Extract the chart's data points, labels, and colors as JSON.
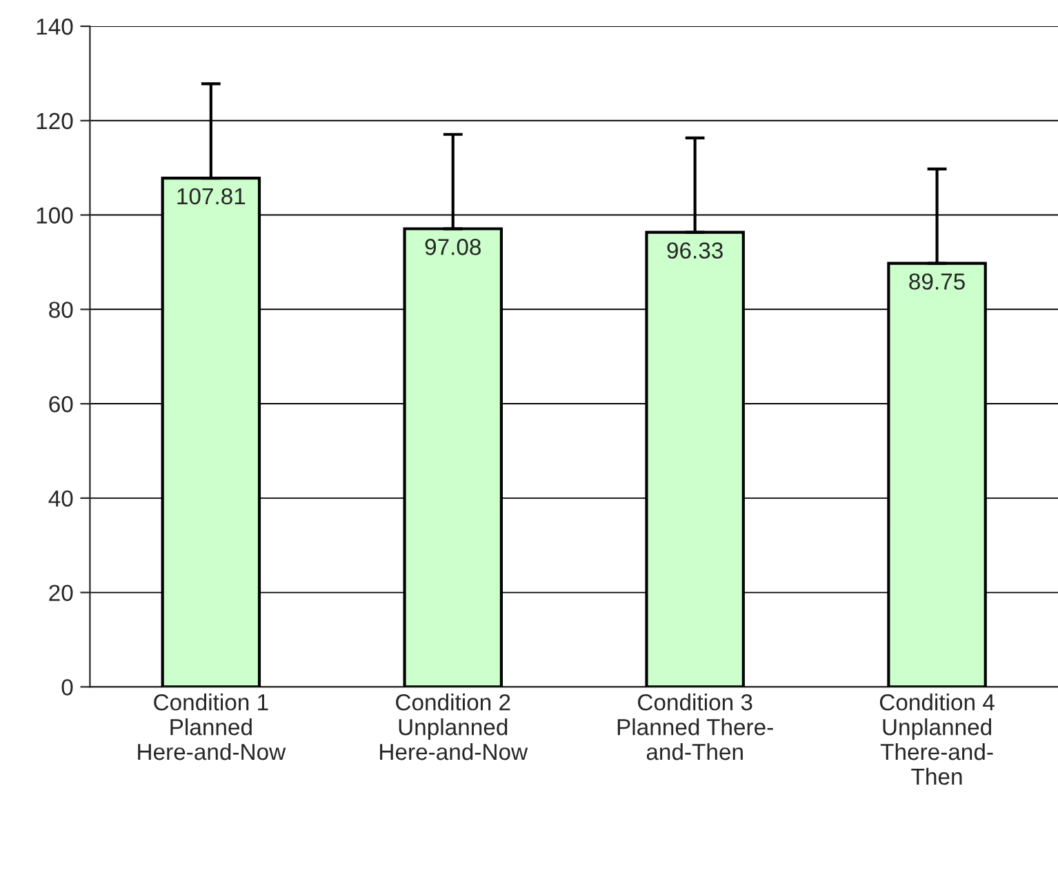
{
  "chart_data": {
    "type": "bar",
    "categories": [
      "Condition 1\nPlanned\nHere-and-Now",
      "Condition 2\nUnplanned\nHere-and-Now",
      "Condition 3\nPlanned There-\nand-Then",
      "Condition 4\nUnplanned\nThere-and-\nThen"
    ],
    "values": [
      107.81,
      97.08,
      96.33,
      89.75
    ],
    "errors": [
      20,
      20,
      20,
      20
    ],
    "color": "#ccffcc",
    "data_labels": true,
    "ylim": [
      0,
      140
    ],
    "yticks": [
      0,
      20,
      40,
      60,
      80,
      100,
      120,
      140
    ],
    "grid": "y"
  }
}
